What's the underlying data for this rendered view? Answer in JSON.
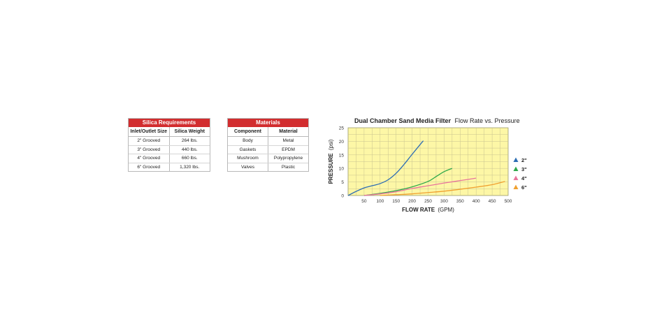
{
  "silica_table": {
    "title": "Silica Requirements",
    "headers": [
      "Inlet/Outlet Size",
      "Silica Weight"
    ],
    "rows": [
      [
        "2\" Grooved",
        "264 lbs."
      ],
      [
        "3\" Grooved",
        "440 lbs."
      ],
      [
        "4\" Grooved",
        "660 lbs."
      ],
      [
        "6\" Grooved",
        "1,320 lbs."
      ]
    ]
  },
  "materials_table": {
    "title": "Materials",
    "headers": [
      "Component",
      "Material"
    ],
    "rows": [
      [
        "Body",
        "Metal"
      ],
      [
        "Gaskets",
        "EPDM"
      ],
      [
        "Mushroom",
        "Polypropylene"
      ],
      [
        "Valves",
        "Plastic"
      ]
    ]
  },
  "chart_data": {
    "type": "line",
    "title": "Dual Chamber Sand Media Filter",
    "subtitle": "Flow Rate vs. Pressure",
    "xlabel": "FLOW RATE",
    "xlabel_unit": "(GPM)",
    "ylabel": "PRESSURE",
    "ylabel_unit": "(psi)",
    "xlim": [
      0,
      500
    ],
    "ylim": [
      0,
      25
    ],
    "xticks": [
      50,
      100,
      150,
      200,
      250,
      300,
      350,
      400,
      450,
      500
    ],
    "yticks": [
      0,
      5,
      10,
      15,
      20,
      25
    ],
    "grid": true,
    "background": "#fdf7a6",
    "legend_position": "right",
    "series": [
      {
        "name": "2\"",
        "color": "#2d6db4",
        "x": [
          0,
          25,
          50,
          75,
          100,
          125,
          150,
          175,
          200,
          225,
          235
        ],
        "y": [
          0,
          1.5,
          2.8,
          3.6,
          4.4,
          5.8,
          8.2,
          11.5,
          15.2,
          18.8,
          20.2
        ]
      },
      {
        "name": "3\"",
        "color": "#2ea84a",
        "x": [
          50,
          100,
          150,
          200,
          250,
          275,
          300,
          325
        ],
        "y": [
          0,
          0.8,
          1.8,
          3.2,
          5.2,
          7.0,
          8.8,
          10.0
        ]
      },
      {
        "name": "4\"",
        "color": "#e8759c",
        "x": [
          50,
          100,
          150,
          200,
          250,
          300,
          350,
          400
        ],
        "y": [
          0,
          0.6,
          1.4,
          2.6,
          3.6,
          4.6,
          5.5,
          6.4
        ]
      },
      {
        "name": "6\"",
        "color": "#f0a030",
        "x": [
          100,
          150,
          200,
          250,
          300,
          350,
          400,
          450,
          490
        ],
        "y": [
          0,
          0.3,
          0.6,
          1.1,
          1.6,
          2.3,
          3.1,
          4.0,
          5.2
        ]
      }
    ]
  }
}
